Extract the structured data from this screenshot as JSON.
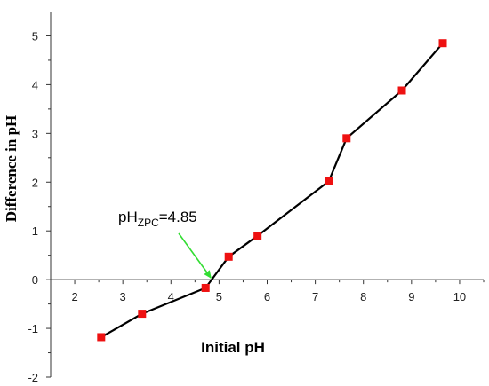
{
  "chart_data": {
    "type": "line",
    "title": "",
    "xlabel": "Initial pH",
    "ylabel": "Difference in pH",
    "xlim": [
      1.5,
      10.5
    ],
    "ylim": [
      -2,
      5.5
    ],
    "xticks": [
      "2",
      "3",
      "4",
      "5",
      "6",
      "7",
      "8",
      "9",
      "10"
    ],
    "yticks": [
      "-2",
      "-1",
      "0",
      "1",
      "2",
      "3",
      "4",
      "5"
    ],
    "grid": false,
    "series": [
      {
        "x": [
          2.55,
          3.4,
          4.72,
          5.2,
          5.8,
          7.28,
          7.65,
          8.8,
          9.65
        ],
        "y": [
          -1.18,
          -0.7,
          -0.17,
          0.47,
          0.9,
          2.02,
          2.9,
          3.88,
          4.85
        ]
      }
    ],
    "annotation": {
      "base": "pH",
      "sub": "ZPC",
      "value": "=4.85",
      "arrow_to": [
        4.85,
        0
      ]
    },
    "colors": {
      "line": "#000000",
      "marker": "#ee1111",
      "arrow": "#33dd33",
      "axis": "#333333"
    }
  }
}
